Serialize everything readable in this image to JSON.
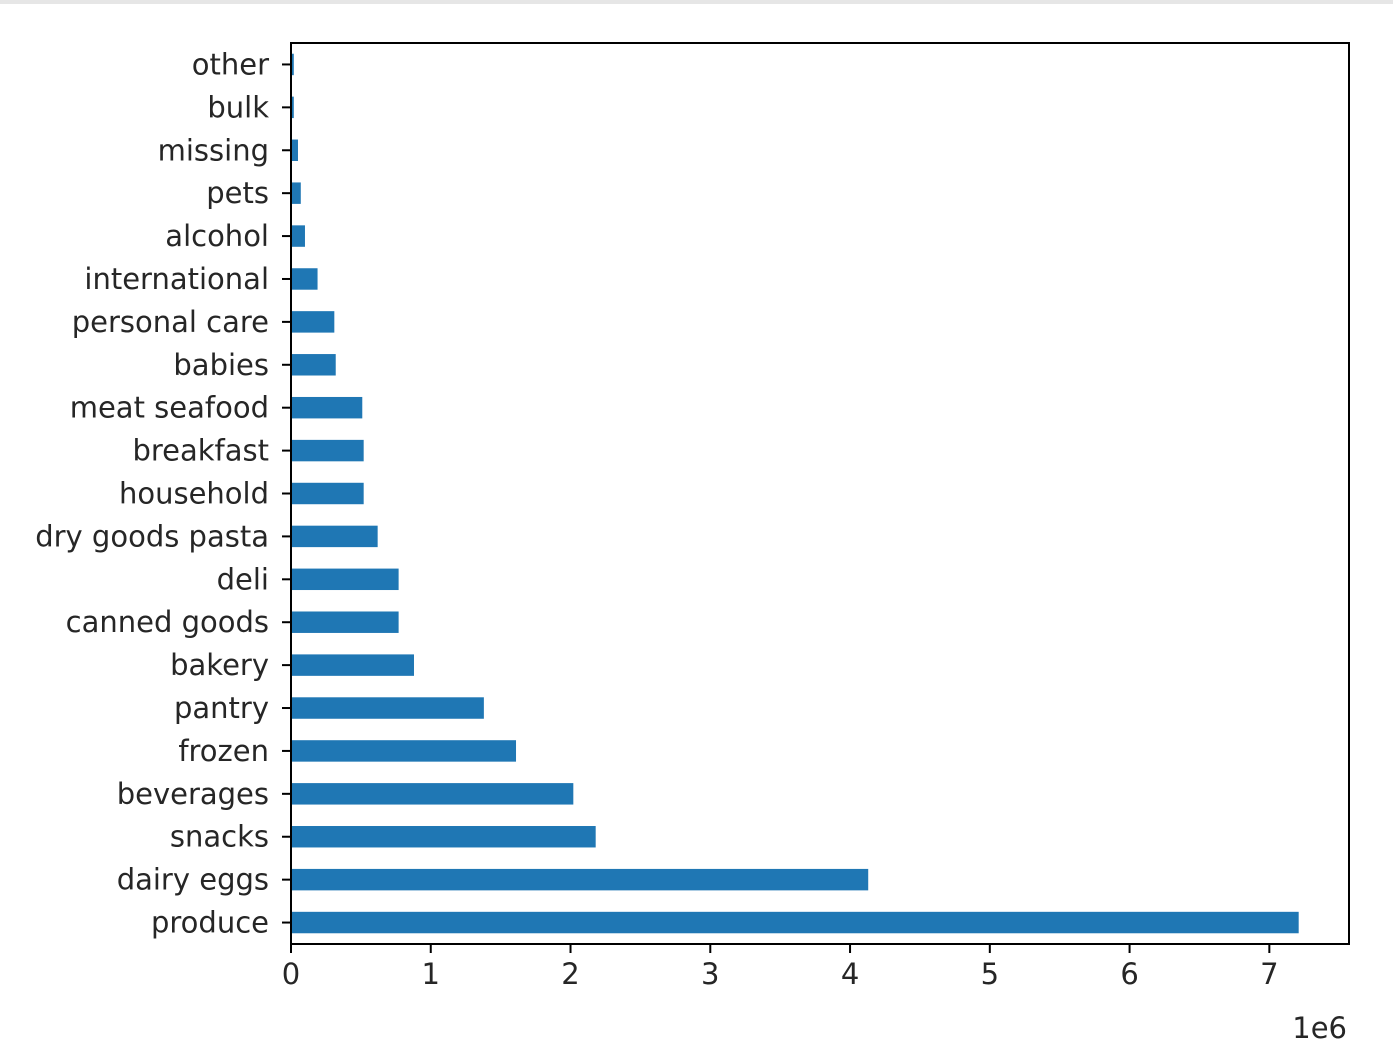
{
  "chart_data": {
    "type": "bar",
    "orientation": "horizontal",
    "categories": [
      "produce",
      "dairy eggs",
      "snacks",
      "beverages",
      "frozen",
      "pantry",
      "bakery",
      "canned goods",
      "deli",
      "dry goods pasta",
      "household",
      "breakfast",
      "meat seafood",
      "babies",
      "personal care",
      "international",
      "alcohol",
      "pets",
      "missing",
      "bulk",
      "other"
    ],
    "values": [
      7210000,
      4130000,
      2180000,
      2020000,
      1610000,
      1380000,
      880000,
      770000,
      770000,
      620000,
      520000,
      520000,
      510000,
      320000,
      310000,
      190000,
      100000,
      70000,
      50000,
      20000,
      20000
    ],
    "xlim": [
      0,
      7570000
    ],
    "xticks": [
      0,
      1,
      2,
      3,
      4,
      5,
      6,
      7
    ],
    "xtick_labels": [
      "0",
      "1",
      "2",
      "3",
      "4",
      "5",
      "6",
      "7"
    ],
    "x_offset_label": "1e6",
    "title": "",
    "xlabel": "",
    "ylabel": "",
    "grid": false,
    "bar_color": "#1f77b4"
  }
}
